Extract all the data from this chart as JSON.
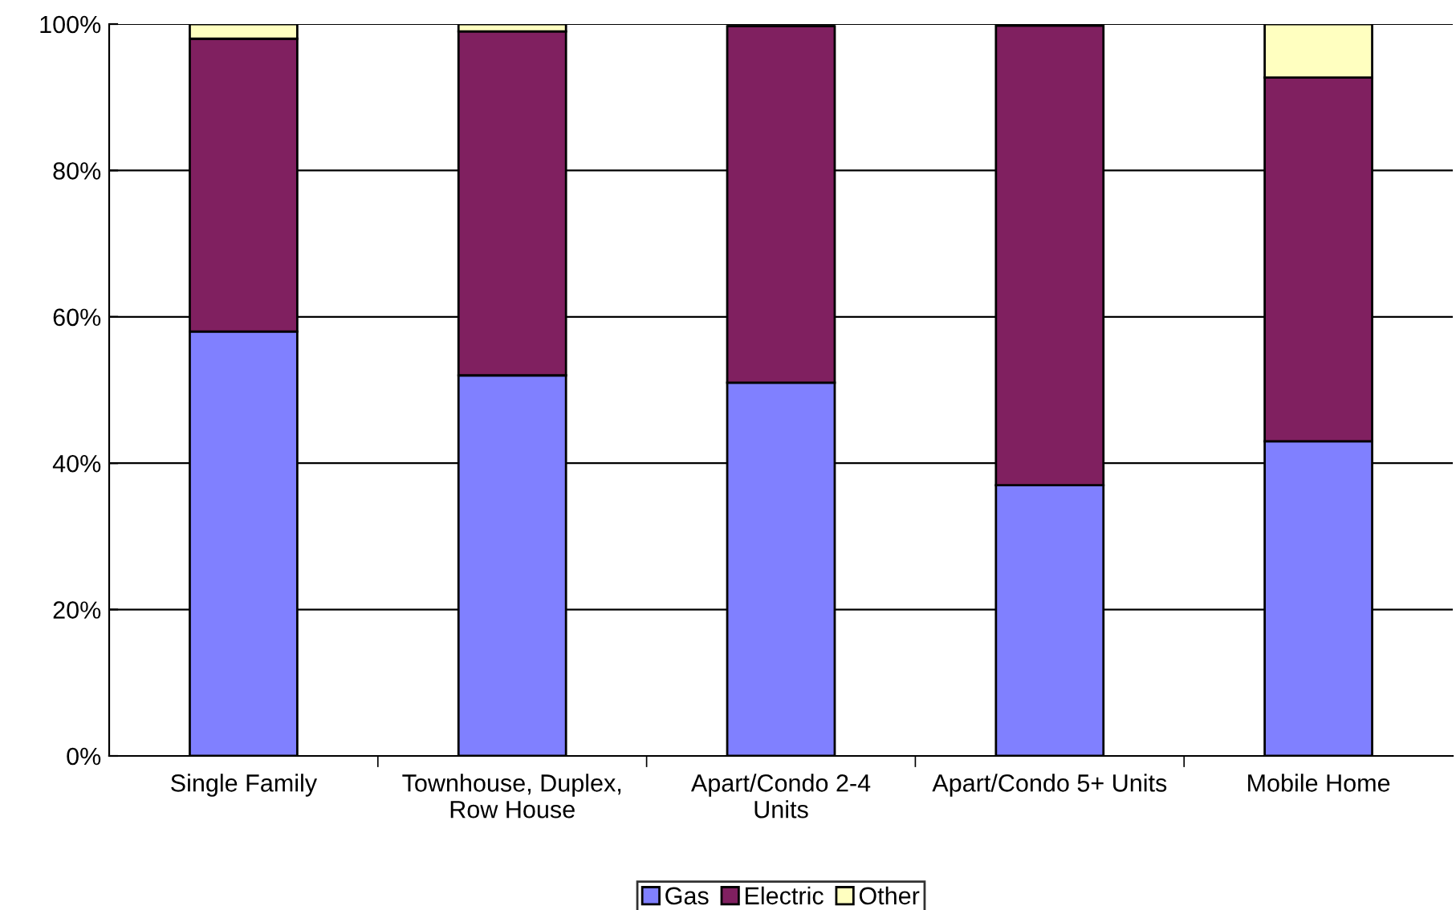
{
  "chart_data": {
    "type": "bar",
    "stacked": true,
    "categories": [
      "Single Family",
      "Townhouse, Duplex,\nRow House",
      "Apart/Condo 2-4\nUnits",
      "Apart/Condo 5+ Units",
      "Mobile Home"
    ],
    "series": [
      {
        "name": "Gas",
        "color": "#8080ff",
        "values": [
          58,
          52,
          51,
          37,
          43
        ]
      },
      {
        "name": "Electric",
        "color": "#802060",
        "values": [
          40,
          47,
          48.7,
          62.8,
          49.7
        ]
      },
      {
        "name": "Other",
        "color": "#ffffc0",
        "values": [
          2,
          1,
          null,
          null,
          7.3
        ]
      }
    ],
    "ylim": [
      0,
      100
    ],
    "yticks": [
      {
        "value": 0,
        "label": "0%"
      },
      {
        "value": 20,
        "label": "20%"
      },
      {
        "value": 40,
        "label": "40%"
      },
      {
        "value": 60,
        "label": "60%"
      },
      {
        "value": 80,
        "label": "80%"
      },
      {
        "value": 100,
        "label": "100%"
      }
    ],
    "grid": "y",
    "legend": "bottom"
  }
}
